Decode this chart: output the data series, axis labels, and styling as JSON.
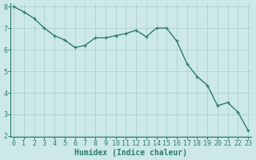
{
  "x": [
    0,
    1,
    2,
    3,
    4,
    5,
    6,
    7,
    8,
    9,
    10,
    11,
    12,
    13,
    14,
    15,
    16,
    17,
    18,
    19,
    20,
    21,
    22,
    23
  ],
  "y": [
    8.0,
    7.75,
    7.45,
    7.0,
    6.65,
    6.45,
    6.1,
    6.2,
    6.55,
    6.55,
    6.65,
    6.75,
    6.9,
    6.6,
    7.0,
    7.0,
    6.4,
    5.35,
    4.75,
    4.35,
    3.4,
    3.55,
    3.1,
    2.25
  ],
  "line_color": "#2e7d6e",
  "marker": "+",
  "marker_size": 3,
  "bg_color": "#cce8e8",
  "grid_color": "#aacccc",
  "xlabel": "Humidex (Indice chaleur)",
  "xlabel_fontsize": 7,
  "tick_fontsize": 6,
  "ylim_min": 2,
  "ylim_max": 8,
  "xlim_min": 0,
  "xlim_max": 23,
  "yticks": [
    2,
    3,
    4,
    5,
    6,
    7,
    8
  ],
  "xticks": [
    0,
    1,
    2,
    3,
    4,
    5,
    6,
    7,
    8,
    9,
    10,
    11,
    12,
    13,
    14,
    15,
    16,
    17,
    18,
    19,
    20,
    21,
    22,
    23
  ],
  "line_width": 1.0,
  "spine_color": "#2e7d6e"
}
